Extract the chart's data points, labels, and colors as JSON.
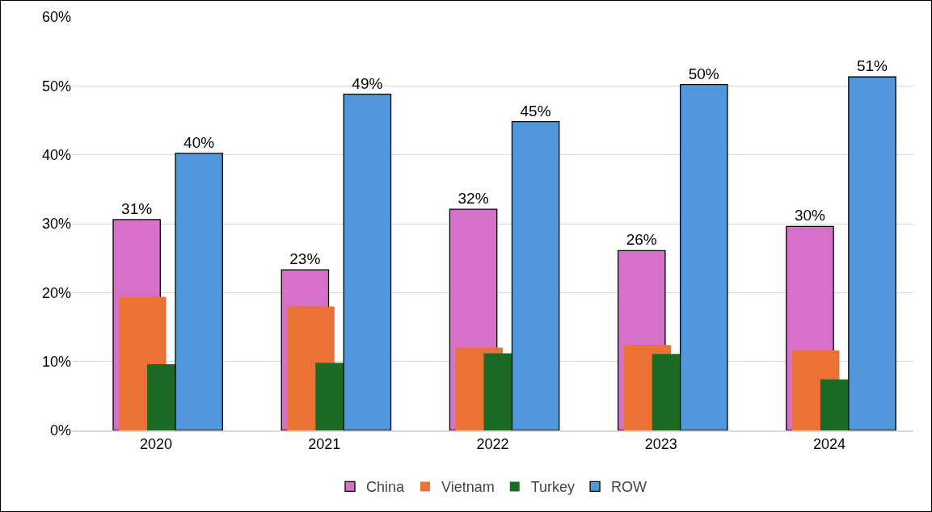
{
  "chart_data": {
    "type": "bar",
    "categories": [
      "2020",
      "2021",
      "2022",
      "2023",
      "2024"
    ],
    "series": [
      {
        "name": "China",
        "color": "#d670c9",
        "values": [
          30.6,
          23.3,
          32.1,
          26.1,
          29.6
        ],
        "value_labels": [
          "31%",
          "23%",
          "32%",
          "26%",
          "30%"
        ]
      },
      {
        "name": "Vietnam",
        "color": "#eb7234",
        "values": [
          19.4,
          18.0,
          12.0,
          12.4,
          11.6
        ]
      },
      {
        "name": "Turkey",
        "color": "#1b6b25",
        "values": [
          9.6,
          9.8,
          11.2,
          11.1,
          7.4
        ]
      },
      {
        "name": "ROW",
        "color": "#5097db",
        "values": [
          40.2,
          48.8,
          44.8,
          50.2,
          51.3
        ],
        "value_labels": [
          "40%",
          "49%",
          "45%",
          "50%",
          "51%"
        ]
      }
    ],
    "ylim": [
      0,
      60
    ],
    "yticks": [
      {
        "value": 0,
        "label": "0%"
      },
      {
        "value": 10,
        "label": "10%"
      },
      {
        "value": 20,
        "label": "20%"
      },
      {
        "value": 30,
        "label": "30%"
      },
      {
        "value": 40,
        "label": "40%"
      },
      {
        "value": 50,
        "label": "50%"
      },
      {
        "value": 60,
        "label": "60%"
      }
    ],
    "grid": "y",
    "legend": "bottom"
  }
}
